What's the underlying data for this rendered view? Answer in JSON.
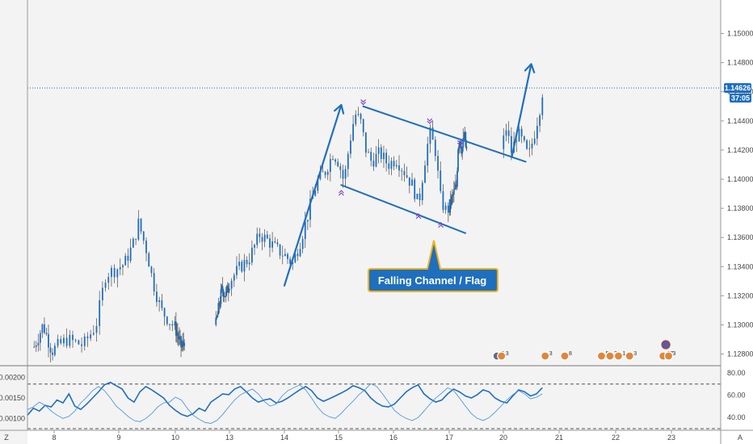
{
  "chart_data": [
    {
      "type": "candlestick",
      "price_axis_ticks": [
        "1.15000",
        "1.14800",
        "1.14600",
        "1.14400",
        "1.14200",
        "1.14000",
        "1.13800",
        "1.13600",
        "1.13400",
        "1.13200",
        "1.13000",
        "1.12800"
      ],
      "price_range": [
        1.1272,
        1.1523
      ],
      "time_axis_ticks": [
        {
          "label": "8",
          "day": 8
        },
        {
          "label": "9",
          "day": 9
        },
        {
          "label": "10",
          "day": 10
        },
        {
          "label": "13",
          "day": 13
        },
        {
          "label": "14",
          "day": 14
        },
        {
          "label": "15",
          "day": 15
        },
        {
          "label": "16",
          "day": 16
        },
        {
          "label": "17",
          "day": 17
        },
        {
          "label": "20",
          "day": 20
        },
        {
          "label": "21",
          "day": 21
        },
        {
          "label": "22",
          "day": 22
        },
        {
          "label": "23",
          "day": 23
        }
      ],
      "current_price": {
        "label": "1.14626",
        "value": 1.14626,
        "timer": "37:05"
      },
      "close_path": [
        {
          "day": 7.55,
          "price": 1.1285
        },
        {
          "day": 7.75,
          "price": 1.13
        },
        {
          "day": 7.95,
          "price": 1.1282
        },
        {
          "day": 8.2,
          "price": 1.129
        },
        {
          "day": 8.45,
          "price": 1.1286
        },
        {
          "day": 8.65,
          "price": 1.13
        },
        {
          "day": 8.8,
          "price": 1.1335
        },
        {
          "day": 8.95,
          "price": 1.1338
        },
        {
          "day": 9.1,
          "price": 1.1342
        },
        {
          "day": 9.25,
          "price": 1.1355
        },
        {
          "day": 9.35,
          "price": 1.137
        },
        {
          "day": 9.5,
          "price": 1.135
        },
        {
          "day": 9.6,
          "price": 1.133
        },
        {
          "day": 9.75,
          "price": 1.131
        },
        {
          "day": 9.95,
          "price": 1.13
        },
        {
          "day": 10.15,
          "price": 1.1292
        },
        {
          "day": 10.35,
          "price": 1.1284
        },
        {
          "day": 10.5,
          "price": 1.129
        },
        {
          "day": 12.25,
          "price": 1.13
        },
        {
          "day": 12.45,
          "price": 1.1315
        },
        {
          "day": 12.6,
          "price": 1.1325
        },
        {
          "day": 12.8,
          "price": 1.132
        },
        {
          "day": 13.0,
          "price": 1.133
        },
        {
          "day": 13.2,
          "price": 1.134
        },
        {
          "day": 13.35,
          "price": 1.1345
        },
        {
          "day": 13.55,
          "price": 1.1362
        },
        {
          "day": 13.7,
          "price": 1.1358
        },
        {
          "day": 13.85,
          "price": 1.1352
        },
        {
          "day": 14.0,
          "price": 1.1348
        },
        {
          "day": 14.15,
          "price": 1.1342
        },
        {
          "day": 14.3,
          "price": 1.1358
        },
        {
          "day": 14.45,
          "price": 1.1378
        },
        {
          "day": 14.6,
          "price": 1.1398
        },
        {
          "day": 14.75,
          "price": 1.1405
        },
        {
          "day": 14.9,
          "price": 1.1418
        },
        {
          "day": 15.0,
          "price": 1.1412
        },
        {
          "day": 15.1,
          "price": 1.1398
        },
        {
          "day": 15.2,
          "price": 1.1425
        },
        {
          "day": 15.3,
          "price": 1.1445
        },
        {
          "day": 15.4,
          "price": 1.144
        },
        {
          "day": 15.5,
          "price": 1.142
        },
        {
          "day": 15.6,
          "price": 1.1412
        },
        {
          "day": 15.75,
          "price": 1.1418
        },
        {
          "day": 15.9,
          "price": 1.141
        },
        {
          "day": 16.05,
          "price": 1.1414
        },
        {
          "day": 16.2,
          "price": 1.1405
        },
        {
          "day": 16.35,
          "price": 1.1395
        },
        {
          "day": 16.45,
          "price": 1.1382
        },
        {
          "day": 16.55,
          "price": 1.141
        },
        {
          "day": 16.65,
          "price": 1.1432
        },
        {
          "day": 16.75,
          "price": 1.142
        },
        {
          "day": 16.85,
          "price": 1.1385
        },
        {
          "day": 16.95,
          "price": 1.1378
        },
        {
          "day": 17.1,
          "price": 1.1385
        },
        {
          "day": 17.25,
          "price": 1.139
        },
        {
          "day": 17.4,
          "price": 1.1395
        },
        {
          "day": 17.5,
          "price": 1.1425
        },
        {
          "day": 17.6,
          "price": 1.1428
        },
        {
          "day": 17.7,
          "price": 1.142
        },
        {
          "day": 17.85,
          "price": 1.143
        },
        {
          "day": 17.95,
          "price": 1.1418
        },
        {
          "day": 18.05,
          "price": 1.1435
        },
        {
          "day": 18.15,
          "price": 1.1418
        },
        {
          "day": 18.25,
          "price": 1.1432
        },
        {
          "day": 18.35,
          "price": 1.1425
        },
        {
          "day": 18.45,
          "price": 1.1415
        },
        {
          "day": 18.55,
          "price": 1.143
        },
        {
          "day": 18.65,
          "price": 1.1448
        },
        {
          "day": 18.7,
          "price": 1.146
        }
      ],
      "annotations": {
        "callout": "Falling Channel / Flag",
        "channel_upper": [
          {
            "day": 15.45,
            "price": 1.145
          },
          {
            "day": 18.4,
            "price": 1.1412
          }
        ],
        "channel_lower": [
          {
            "day": 15.05,
            "price": 1.1396
          },
          {
            "day": 17.9,
            "price": 1.1363
          }
        ],
        "arrow_up_1": [
          {
            "day": 14.0,
            "price": 1.1327
          },
          {
            "day": 15.05,
            "price": 1.1451
          }
        ],
        "arrow_up_2": [
          {
            "day": 18.15,
            "price": 1.1415
          },
          {
            "day": 18.5,
            "price": 1.1479
          }
        ],
        "markers": [
          {
            "day": 15.45,
            "price": 1.14535,
            "dir": "down"
          },
          {
            "day": 16.65,
            "price": 1.14405,
            "dir": "down"
          },
          {
            "day": 17.6,
            "price": 1.14255,
            "dir": "down"
          },
          {
            "day": 15.05,
            "price": 1.139,
            "dir": "up"
          },
          {
            "day": 16.45,
            "price": 1.1374,
            "dir": "up"
          },
          {
            "day": 16.85,
            "price": 1.1368,
            "dir": "up"
          }
        ]
      },
      "event_badges": [
        {
          "day": 19.65,
          "label": "2",
          "color": "#5a6c88"
        },
        {
          "day": 19.9,
          "label": "3",
          "color": "#e0863a"
        },
        {
          "day": 20.75,
          "label": "3",
          "color": "#e0863a"
        },
        {
          "day": 21.1,
          "label": "8",
          "color": "#e0863a"
        },
        {
          "day": 21.75,
          "label": "5",
          "color": "#e0863a"
        },
        {
          "day": 21.9,
          "label": "3",
          "color": "#e0863a"
        },
        {
          "day": 22.05,
          "label": "1",
          "color": "#e0863a"
        },
        {
          "day": 22.25,
          "label": "3",
          "color": "#e0863a"
        },
        {
          "day": 22.85,
          "label": "27",
          "color": "#e0863a"
        },
        {
          "day": 22.95,
          "label": "3",
          "color": "#e0863a"
        },
        {
          "day": 22.9,
          "label": "",
          "color": "#4a5fb0",
          "top": true
        }
      ],
      "colors": {
        "candle": "#1f6fbf",
        "wick": "#4a4a4a",
        "annotation": "#1f6fbf",
        "price_tag": "#1f6fbf",
        "marker": "#7b3fc4",
        "callout_fill": "#1f6fbf",
        "callout_border": "#f2b21a"
      }
    },
    {
      "type": "line",
      "left_axis_ticks": [
        "0.00200",
        "0.00150",
        "0.00100"
      ],
      "left_range": [
        0.00075,
        0.00225
      ],
      "right_axis_ticks": [
        "80.00",
        "60.00",
        "40.00"
      ],
      "right_range": [
        30,
        85
      ],
      "dashed_levels": [
        70,
        30
      ],
      "series": [
        {
          "scale": "left",
          "color": "#1f6fbf",
          "width": 1.6,
          "values": [
            0.00108,
            0.00125,
            0.00118,
            0.00132,
            0.00128,
            0.00145,
            0.00138,
            0.0016,
            0.0013,
            0.00122,
            0.00135,
            0.0015,
            0.00165,
            0.00182,
            0.00188,
            0.0018,
            0.00172,
            0.0015,
            0.0014,
            0.00165,
            0.00178,
            0.0017,
            0.0016,
            0.0015,
            0.00132,
            0.0012,
            0.0011,
            0.00105,
            0.00112,
            0.00125,
            0.00118,
            0.0014,
            0.0015,
            0.0016,
            0.00158,
            0.00172,
            0.00178,
            0.00165,
            0.0015,
            0.0014,
            0.00145,
            0.00148,
            0.00138,
            0.00142,
            0.0015,
            0.0016,
            0.0017,
            0.00178,
            0.00168,
            0.0015,
            0.00142,
            0.00148,
            0.00155,
            0.00162,
            0.0017,
            0.0018,
            0.00175,
            0.00168,
            0.0015,
            0.00138,
            0.0013,
            0.00128,
            0.00135,
            0.0015,
            0.00165,
            0.00175,
            0.00182,
            0.0016,
            0.00148,
            0.0014,
            0.00145,
            0.0016,
            0.00172,
            0.00165,
            0.00155,
            0.0015,
            0.00158,
            0.0017,
            0.00165,
            0.0015,
            0.00142,
            0.00138,
            0.00155,
            0.0017,
            0.00165,
            0.00155,
            0.0016,
            0.00175
          ]
        },
        {
          "scale": "left",
          "color": "#3d8fe0",
          "width": 0.8,
          "values": [
            0.00122,
            0.00128,
            0.0014,
            0.00132,
            0.00118,
            0.00108,
            0.001,
            0.00105,
            0.00118,
            0.00138,
            0.00152,
            0.00168,
            0.00178,
            0.00168,
            0.0015,
            0.0013,
            0.00118,
            0.00105,
            0.00095,
            0.00092,
            0.001,
            0.00112,
            0.00128,
            0.00138,
            0.0014,
            0.00152,
            0.00145,
            0.00125,
            0.00108,
            0.00098,
            0.0009,
            0.00088,
            0.00095,
            0.0011,
            0.00128,
            0.00145,
            0.00158,
            0.00165,
            0.00172,
            0.0016,
            0.00142,
            0.0013,
            0.00135,
            0.00155,
            0.00168,
            0.00175,
            0.00182,
            0.0017,
            0.0015,
            0.00128,
            0.00112,
            0.00104,
            0.001,
            0.00112,
            0.00128,
            0.00142,
            0.00158,
            0.0017,
            0.00185,
            0.00178,
            0.0016,
            0.0014,
            0.0012,
            0.00108,
            0.001,
            0.00095,
            0.00102,
            0.00118,
            0.00135,
            0.0015,
            0.00162,
            0.00175,
            0.00168,
            0.0015,
            0.0013,
            0.00112,
            0.001,
            0.00095,
            0.00102,
            0.00115,
            0.0013,
            0.00145,
            0.00158,
            0.00168,
            0.0016,
            0.00148,
            0.00152,
            0.0016
          ]
        }
      ]
    }
  ],
  "ui": {
    "corner_left": "Z",
    "corner_right": "A"
  }
}
